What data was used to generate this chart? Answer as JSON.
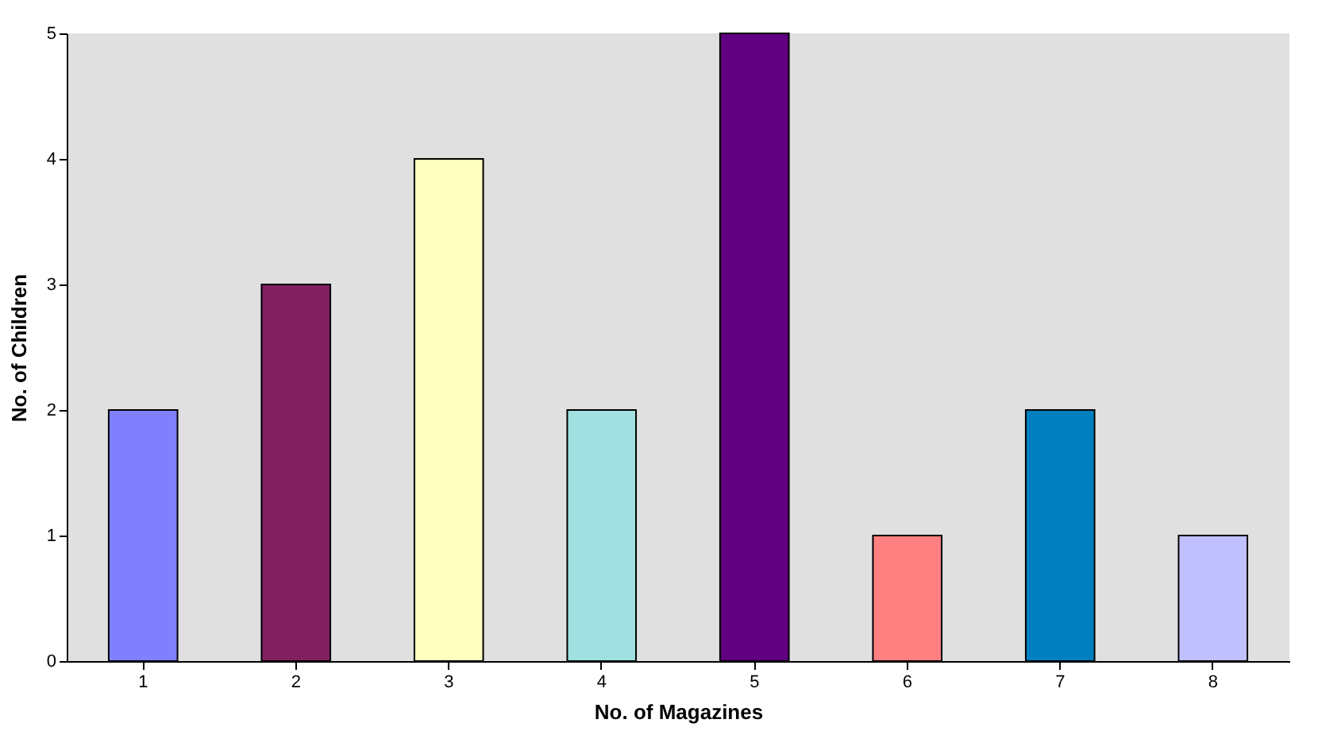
{
  "chart_data": {
    "type": "bar",
    "xlabel": "No. of Magazines",
    "ylabel": "No. of Children",
    "categories": [
      "1",
      "2",
      "3",
      "4",
      "5",
      "6",
      "7",
      "8"
    ],
    "values": [
      2,
      3,
      4,
      2,
      5,
      1,
      2,
      1
    ],
    "colors": [
      "#8080ff",
      "#802060",
      "#ffffc0",
      "#a0e0e0",
      "#600080",
      "#ff8080",
      "#0080c0",
      "#c0c0ff"
    ],
    "ylim": [
      0,
      5
    ],
    "yticks": [
      0,
      1,
      2,
      3,
      4,
      5
    ],
    "grid": false,
    "legend": false
  }
}
